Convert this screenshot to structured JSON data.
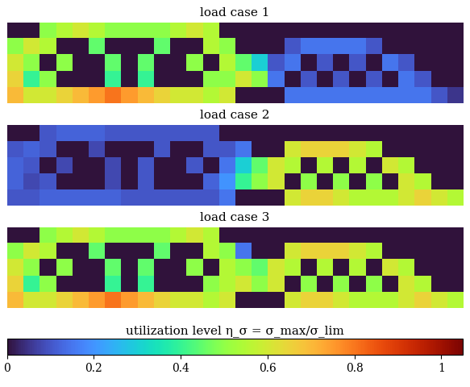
{
  "chart_data": [
    {
      "type": "heatmap",
      "title": "load case 1",
      "tick_labels": false,
      "cells": [
        [
          0,
          0,
          0.5,
          0.55,
          0.6,
          0.55,
          0.5,
          0.5,
          0.5,
          0.5,
          0.55,
          0.6,
          0.55,
          0,
          0,
          0,
          0,
          0,
          0,
          0,
          0,
          0,
          0,
          0,
          0,
          0,
          0,
          0
        ],
        [
          0.5,
          0.6,
          0.55,
          0,
          0,
          0.45,
          0,
          0,
          0,
          0.45,
          0,
          0,
          0.55,
          0.5,
          0,
          0,
          0,
          0.1,
          0.15,
          0.15,
          0.15,
          0.15,
          0.1,
          0,
          0,
          0,
          0,
          0
        ],
        [
          0.6,
          0.5,
          0,
          0.5,
          0,
          0,
          0.45,
          0,
          0.45,
          0,
          0,
          0.5,
          0,
          0.55,
          0.45,
          0.3,
          0.1,
          0.15,
          0,
          0.1,
          0,
          0.1,
          0,
          0.15,
          0.1,
          0,
          0,
          0
        ],
        [
          0.65,
          0.4,
          0.5,
          0,
          0,
          0,
          0.4,
          0,
          0.4,
          0,
          0,
          0,
          0.5,
          0.5,
          0.6,
          0.5,
          0.15,
          0,
          0.1,
          0,
          0.1,
          0,
          0.1,
          0,
          0.15,
          0.1,
          0,
          0
        ],
        [
          0.7,
          0.6,
          0.6,
          0.65,
          0.7,
          0.75,
          0.8,
          0.75,
          0.7,
          0.65,
          0.6,
          0.6,
          0.55,
          0.6,
          0,
          0,
          0,
          0.15,
          0.15,
          0.15,
          0.15,
          0.15,
          0.15,
          0.15,
          0.15,
          0.15,
          0.1,
          0.05
        ]
      ]
    },
    {
      "type": "heatmap",
      "title": "load case 2",
      "tick_labels": false,
      "cells": [
        [
          0,
          0,
          0.1,
          0.12,
          0.12,
          0.12,
          0.1,
          0.1,
          0.1,
          0.1,
          0.1,
          0.1,
          0.1,
          0,
          0,
          0,
          0,
          0,
          0,
          0,
          0,
          0,
          0,
          0,
          0,
          0,
          0,
          0
        ],
        [
          0.1,
          0.12,
          0.1,
          0,
          0,
          0.08,
          0,
          0,
          0,
          0.1,
          0,
          0,
          0.1,
          0.1,
          0.15,
          0,
          0,
          0.6,
          0.65,
          0.65,
          0.65,
          0.6,
          0.55,
          0,
          0,
          0,
          0,
          0
        ],
        [
          0.12,
          0.1,
          0,
          0.08,
          0,
          0,
          0.08,
          0,
          0.1,
          0,
          0,
          0.1,
          0,
          0.15,
          0.3,
          0.45,
          0.6,
          0.55,
          0,
          0.55,
          0,
          0.55,
          0,
          0.6,
          0.55,
          0,
          0,
          0
        ],
        [
          0.12,
          0.08,
          0.1,
          0,
          0,
          0,
          0.08,
          0,
          0.1,
          0,
          0,
          0,
          0.12,
          0.2,
          0.4,
          0.5,
          0.6,
          0,
          0.5,
          0,
          0.5,
          0,
          0.5,
          0,
          0.6,
          0.55,
          0,
          0
        ],
        [
          0.1,
          0.1,
          0.12,
          0.12,
          0.12,
          0.12,
          0.12,
          0.1,
          0.1,
          0.1,
          0.1,
          0.1,
          0.1,
          0.15,
          0,
          0,
          0,
          0.6,
          0.65,
          0.65,
          0.6,
          0.55,
          0.55,
          0.55,
          0.6,
          0.65,
          0.6,
          0.55
        ]
      ]
    },
    {
      "type": "heatmap",
      "title": "load case 3",
      "tick_labels": false,
      "cells": [
        [
          0,
          0,
          0.5,
          0.55,
          0.6,
          0.55,
          0.5,
          0.5,
          0.5,
          0.5,
          0.55,
          0.6,
          0.55,
          0,
          0,
          0,
          0,
          0,
          0,
          0,
          0,
          0,
          0,
          0,
          0,
          0,
          0,
          0
        ],
        [
          0.5,
          0.6,
          0.55,
          0,
          0,
          0.45,
          0,
          0,
          0,
          0.45,
          0,
          0,
          0.55,
          0.5,
          0.15,
          0,
          0,
          0.6,
          0.65,
          0.65,
          0.65,
          0.6,
          0.55,
          0,
          0,
          0,
          0,
          0
        ],
        [
          0.6,
          0.5,
          0,
          0.5,
          0,
          0,
          0.45,
          0,
          0.45,
          0,
          0,
          0.5,
          0,
          0.55,
          0.5,
          0.45,
          0.6,
          0.55,
          0,
          0.55,
          0,
          0.55,
          0,
          0.6,
          0.55,
          0,
          0,
          0
        ],
        [
          0.65,
          0.4,
          0.5,
          0,
          0,
          0,
          0.4,
          0,
          0.4,
          0,
          0,
          0,
          0.5,
          0.55,
          0.6,
          0.5,
          0.6,
          0,
          0.5,
          0,
          0.5,
          0,
          0.5,
          0,
          0.6,
          0.55,
          0,
          0
        ],
        [
          0.7,
          0.6,
          0.6,
          0.65,
          0.7,
          0.75,
          0.8,
          0.75,
          0.7,
          0.65,
          0.6,
          0.6,
          0.55,
          0.6,
          0,
          0,
          0,
          0.6,
          0.65,
          0.65,
          0.6,
          0.55,
          0.55,
          0.55,
          0.6,
          0.65,
          0.6,
          0.55
        ]
      ]
    }
  ],
  "colorbar": {
    "label": "utilization level η_σ = σ_max/σ_lim",
    "range": [
      0,
      1.05
    ],
    "ticks": [
      0,
      0.2,
      0.4,
      0.6,
      0.8,
      1
    ],
    "color": "turbo"
  }
}
